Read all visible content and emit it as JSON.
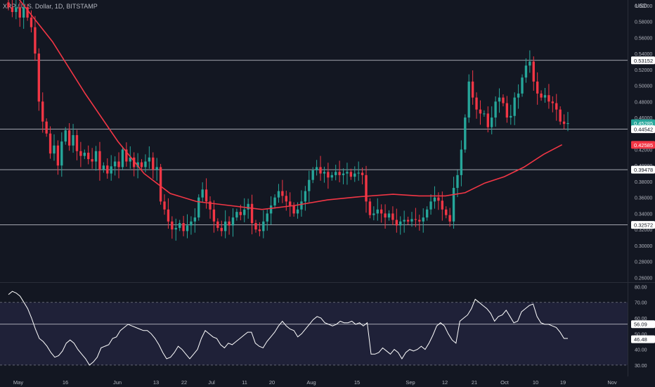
{
  "header": {
    "title": "XRP / U.S. Dollar, 1D, BITSTAMP",
    "axis_unit": "USD"
  },
  "colors": {
    "background": "#131722",
    "up": "#26a69a",
    "down": "#f23645",
    "ma": "#f23645",
    "rsi_line": "#ffffff",
    "rsi_band": "#2a2a4a",
    "hline": "#d1d4dc",
    "text": "#b2b5be"
  },
  "chart_data": [
    {
      "type": "candlestick",
      "title": "XRP / U.S. Dollar, 1D, BITSTAMP",
      "ylim": [
        0.255,
        0.607
      ],
      "price_ticks": [
        "0.60000",
        "0.58000",
        "0.56000",
        "0.54000",
        "0.52000",
        "0.50000",
        "0.48000",
        "0.46000",
        "0.42000",
        "0.40000",
        "0.38000",
        "0.36000",
        "0.34000",
        "0.32000",
        "0.30000",
        "0.28000",
        "0.26000"
      ],
      "x_labels": [
        "May",
        "16",
        "Jun",
        "13",
        "22",
        "Jul",
        "11",
        "20",
        "Aug",
        "15",
        "Sep",
        "12",
        "21",
        "Oct",
        "10",
        "19",
        "Nov"
      ],
      "horizontal_levels": [
        0.53152,
        0.44542,
        0.39478,
        0.32572
      ],
      "price_labels": [
        {
          "value": 0.53152,
          "label": "0.53152",
          "style": "level"
        },
        {
          "value": 0.45285,
          "label": "0.45285",
          "style": "last"
        },
        {
          "value": 0.44542,
          "label": "0.44542",
          "style": "level"
        },
        {
          "value": 0.42585,
          "label": "0.42585",
          "style": "ma"
        },
        {
          "value": 0.39478,
          "label": "0.39478",
          "style": "level"
        },
        {
          "value": 0.32572,
          "label": "0.32572",
          "style": "level"
        }
      ],
      "close_path": [
        0.598,
        0.592,
        0.598,
        0.585,
        0.598,
        0.585,
        0.573,
        0.54,
        0.48,
        0.455,
        0.44,
        0.415,
        0.425,
        0.4,
        0.43,
        0.444,
        0.425,
        0.438,
        0.418,
        0.412,
        0.416,
        0.408,
        0.405,
        0.418,
        0.395,
        0.4,
        0.39,
        0.399,
        0.405,
        0.398,
        0.42,
        0.405,
        0.41,
        0.398,
        0.404,
        0.398,
        0.405,
        0.41,
        0.395,
        0.398,
        0.355,
        0.345,
        0.33,
        0.32,
        0.322,
        0.328,
        0.318,
        0.325,
        0.33,
        0.335,
        0.36,
        0.37,
        0.355,
        0.345,
        0.33,
        0.322,
        0.318,
        0.33,
        0.325,
        0.335,
        0.342,
        0.338,
        0.345,
        0.352,
        0.328,
        0.32,
        0.318,
        0.33,
        0.34,
        0.35,
        0.36,
        0.368,
        0.362,
        0.355,
        0.35,
        0.34,
        0.345,
        0.355,
        0.368,
        0.382,
        0.394,
        0.398,
        0.39,
        0.392,
        0.385,
        0.388,
        0.392,
        0.388,
        0.39,
        0.392,
        0.386,
        0.39,
        0.391,
        0.388,
        0.355,
        0.338,
        0.34,
        0.345,
        0.34,
        0.335,
        0.34,
        0.332,
        0.325,
        0.33,
        0.332,
        0.33,
        0.333,
        0.332,
        0.33,
        0.335,
        0.345,
        0.355,
        0.36,
        0.356,
        0.345,
        0.338,
        0.33,
        0.372,
        0.388,
        0.42,
        0.46,
        0.505,
        0.485,
        0.47,
        0.465,
        0.465,
        0.448,
        0.46,
        0.48,
        0.485,
        0.478,
        0.46,
        0.462,
        0.485,
        0.49,
        0.51,
        0.525,
        0.53,
        0.505,
        0.49,
        0.485,
        0.488,
        0.48,
        0.478,
        0.47,
        0.455,
        0.452,
        0.453
      ],
      "ma_points": [
        [
          0.025,
          0.612
        ],
        [
          0.08,
          0.555
        ],
        [
          0.13,
          0.49
        ],
        [
          0.18,
          0.43
        ],
        [
          0.22,
          0.39
        ],
        [
          0.26,
          0.365
        ],
        [
          0.3,
          0.355
        ],
        [
          0.35,
          0.35
        ],
        [
          0.4,
          0.345
        ],
        [
          0.45,
          0.35
        ],
        [
          0.5,
          0.357
        ],
        [
          0.55,
          0.361
        ],
        [
          0.6,
          0.364
        ],
        [
          0.64,
          0.362
        ],
        [
          0.68,
          0.362
        ],
        [
          0.71,
          0.366
        ],
        [
          0.74,
          0.378
        ],
        [
          0.77,
          0.386
        ],
        [
          0.8,
          0.398
        ],
        [
          0.83,
          0.414
        ],
        [
          0.858,
          0.426
        ]
      ]
    },
    {
      "type": "line",
      "title": "RSI",
      "ylim": [
        25,
        82
      ],
      "y_ticks": [
        "80.00",
        "70.00",
        "60.00",
        "50.00",
        "40.00",
        "30.00"
      ],
      "band": [
        30,
        70
      ],
      "levels": [
        {
          "value": 56.09,
          "label": "56.09"
        }
      ],
      "last": {
        "value": 46.48,
        "label": "46.48"
      },
      "values": [
        75,
        77,
        76,
        74,
        70,
        66,
        60,
        53,
        47,
        45,
        42,
        38,
        35,
        36,
        39,
        44,
        46,
        44,
        40,
        37,
        34,
        30,
        32,
        35,
        41,
        42,
        43,
        47,
        48,
        52,
        54,
        56,
        55,
        54,
        53,
        52,
        52,
        50,
        47,
        43,
        38,
        34,
        35,
        38,
        42,
        40,
        37,
        34,
        37,
        40,
        47,
        52,
        50,
        48,
        47,
        43,
        41,
        44,
        43,
        45,
        47,
        49,
        51,
        51,
        44,
        42,
        41,
        45,
        48,
        51,
        55,
        58,
        55,
        53,
        52,
        48,
        50,
        53,
        56,
        59,
        61,
        60,
        57,
        56,
        55,
        56,
        58,
        57,
        57,
        58,
        56,
        57,
        55,
        57,
        37,
        37,
        38,
        41,
        39,
        37,
        40,
        38,
        34,
        38,
        40,
        39,
        40,
        42,
        40,
        44,
        49,
        55,
        57,
        55,
        50,
        46,
        44,
        58,
        60,
        62,
        66,
        72,
        70,
        68,
        66,
        63,
        58,
        61,
        62,
        65,
        61,
        57,
        58,
        64,
        66,
        68,
        69,
        61,
        57,
        56,
        56,
        55,
        54,
        51,
        47,
        47
      ],
      "x_labels": [
        "May",
        "16",
        "Jun",
        "13",
        "22",
        "Jul",
        "11",
        "20",
        "Aug",
        "15",
        "Sep",
        "12",
        "21",
        "Oct",
        "10",
        "19",
        "Nov"
      ]
    }
  ]
}
